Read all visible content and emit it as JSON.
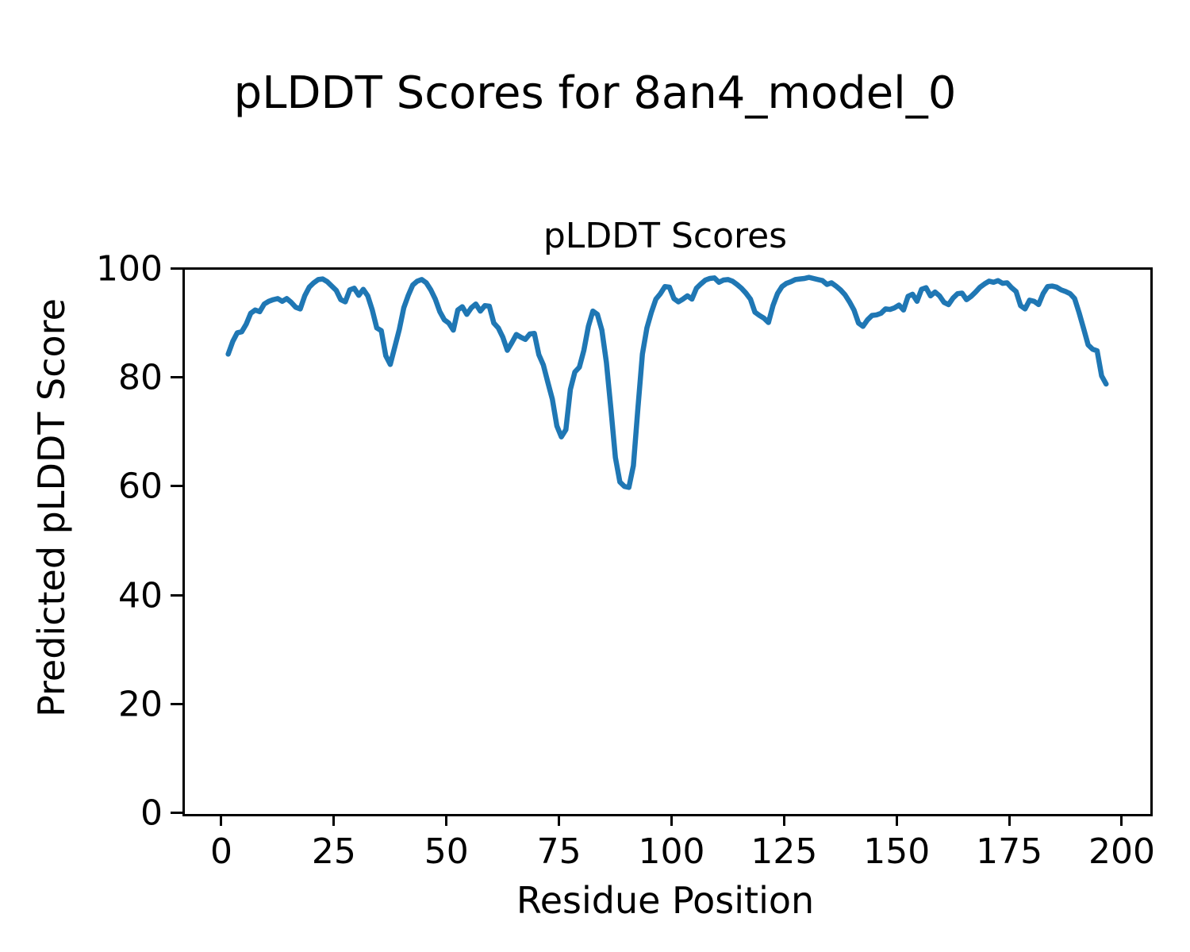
{
  "figure": {
    "title": "pLDDT Scores for 8an4_model_0"
  },
  "chart_data": {
    "type": "line",
    "title": "pLDDT Scores",
    "xlabel": "Residue Position",
    "ylabel": "Predicted pLDDT Score",
    "x_axis_range": [
      -8.63,
      205.82
    ],
    "y_axis_range": [
      0,
      100
    ],
    "xticks": [
      0,
      25,
      50,
      75,
      100,
      125,
      150,
      175,
      200
    ],
    "yticks": [
      0,
      20,
      40,
      60,
      80,
      100
    ],
    "grid": false,
    "legend": false,
    "line_color": "#1f77b4",
    "line_width": 6.5,
    "series": [
      {
        "name": "pLDDT",
        "x_start": 1,
        "x_step": 1,
        "values": [
          84.5,
          86.8,
          88.4,
          88.6,
          90.0,
          92.0,
          92.6,
          92.3,
          93.7,
          94.2,
          94.5,
          94.7,
          94.2,
          94.7,
          94.0,
          93.1,
          92.8,
          95.2,
          96.8,
          97.6,
          98.2,
          98.3,
          97.8,
          97.0,
          96.2,
          94.5,
          94.1,
          96.3,
          96.6,
          95.3,
          96.4,
          95.2,
          92.6,
          89.3,
          88.8,
          84.2,
          82.6,
          85.8,
          89.0,
          93.0,
          95.3,
          97.2,
          97.9,
          98.2,
          97.6,
          96.3,
          94.6,
          92.3,
          90.8,
          90.2,
          88.9,
          92.6,
          93.2,
          91.8,
          93.0,
          93.7,
          92.4,
          93.4,
          93.3,
          90.2,
          89.3,
          87.6,
          85.2,
          86.6,
          88.1,
          87.6,
          87.2,
          88.2,
          88.3,
          84.4,
          82.5,
          79.3,
          76.2,
          71.3,
          69.3,
          70.6,
          78.0,
          81.2,
          82.1,
          85.2,
          89.6,
          92.4,
          91.8,
          88.9,
          83.0,
          74.5,
          65.5,
          61.0,
          60.2,
          60.0,
          64.0,
          74.5,
          84.5,
          89.3,
          92.2,
          94.6,
          95.6,
          96.9,
          96.8,
          94.7,
          94.1,
          94.6,
          95.2,
          94.6,
          96.6,
          97.4,
          98.1,
          98.4,
          98.5,
          97.7,
          98.1,
          98.2,
          97.9,
          97.3,
          96.6,
          95.7,
          94.6,
          92.2,
          91.6,
          91.1,
          90.3,
          93.4,
          95.6,
          96.9,
          97.5,
          97.8,
          98.2,
          98.3,
          98.4,
          98.6,
          98.4,
          98.2,
          98.0,
          97.3,
          97.6,
          97.0,
          96.3,
          95.4,
          94.1,
          92.6,
          90.2,
          89.6,
          90.8,
          91.6,
          91.7,
          92.0,
          92.8,
          92.7,
          93.0,
          93.5,
          92.6,
          95.1,
          95.5,
          94.2,
          96.4,
          96.7,
          95.2,
          95.9,
          95.2,
          94.0,
          93.6,
          94.8,
          95.6,
          95.7,
          94.5,
          95.1,
          95.9,
          96.8,
          97.4,
          97.9,
          97.7,
          98.0,
          97.5,
          97.6,
          96.7,
          96.0,
          93.4,
          92.8,
          94.4,
          94.2,
          93.6,
          95.6,
          96.9,
          97.0,
          96.8,
          96.3,
          96.0,
          95.6,
          94.7,
          92.1,
          89.2,
          86.2,
          85.4,
          85.1,
          80.5,
          79.0
        ]
      }
    ]
  }
}
